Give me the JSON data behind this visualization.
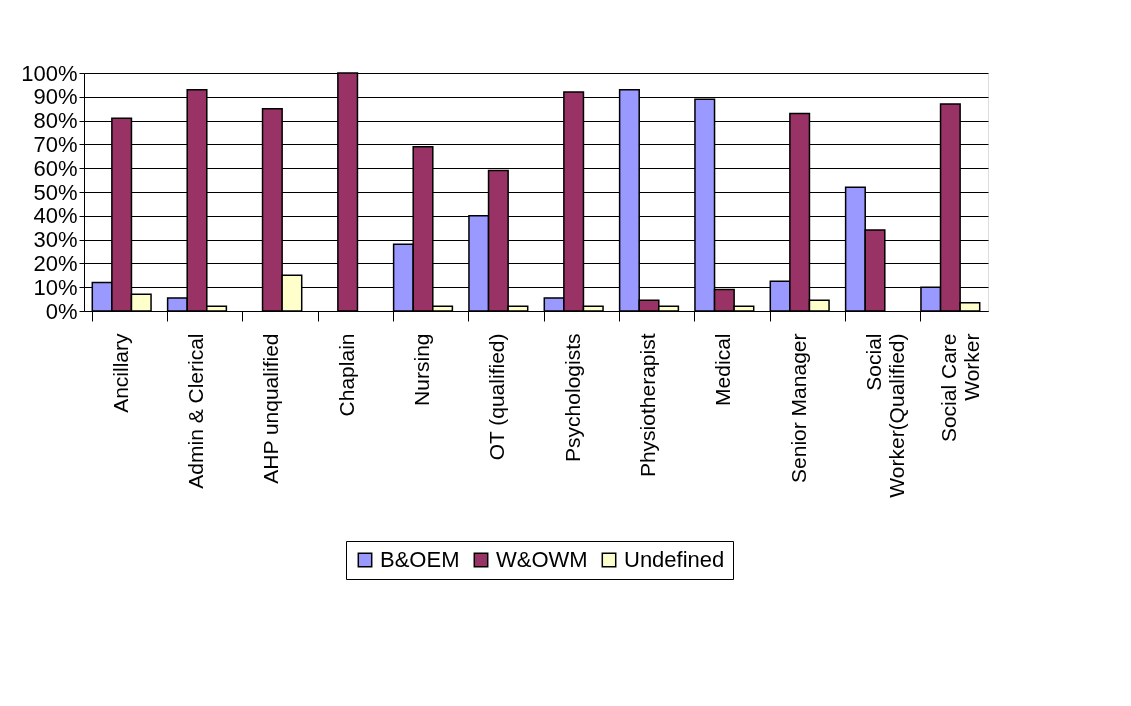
{
  "chart_data": {
    "type": "bar",
    "categories": [
      "Ancillary",
      "Admin & Clerical",
      "AHP unqualified",
      "Chaplain",
      "Nursing",
      "OT (qualified)",
      "Psychologists",
      "Physiotherapist",
      "Medical",
      "Senior Manager",
      "Social\nWorker(Qualified)",
      "Social Care\nWorker"
    ],
    "series": [
      {
        "name": "B&OEM",
        "color": "#9999ff",
        "values": [
          12,
          5.5,
          null,
          null,
          28,
          40,
          5.5,
          93,
          89,
          12.5,
          52,
          10
        ]
      },
      {
        "name": "W&OWM",
        "color": "#993366",
        "values": [
          81,
          93,
          85,
          100,
          69,
          59,
          92,
          4.5,
          9,
          83,
          34,
          87
        ]
      },
      {
        "name": "Undefined",
        "color": "#ffffcc",
        "values": [
          7,
          2,
          15,
          null,
          2,
          2,
          2,
          2,
          2,
          4.5,
          null,
          3.5
        ]
      }
    ],
    "ylim": [
      0,
      100
    ],
    "yticks": [
      {
        "value": 0,
        "label": "0%"
      },
      {
        "value": 10,
        "label": "10%"
      },
      {
        "value": 20,
        "label": "20%"
      },
      {
        "value": 30,
        "label": "30%"
      },
      {
        "value": 40,
        "label": "40%"
      },
      {
        "value": 50,
        "label": "50%"
      },
      {
        "value": 60,
        "label": "60%"
      },
      {
        "value": 70,
        "label": "70%"
      },
      {
        "value": 80,
        "label": "80%"
      },
      {
        "value": 90,
        "label": "90%"
      },
      {
        "value": 100,
        "label": "100%"
      }
    ],
    "grid": "y",
    "legend": "bottom"
  }
}
